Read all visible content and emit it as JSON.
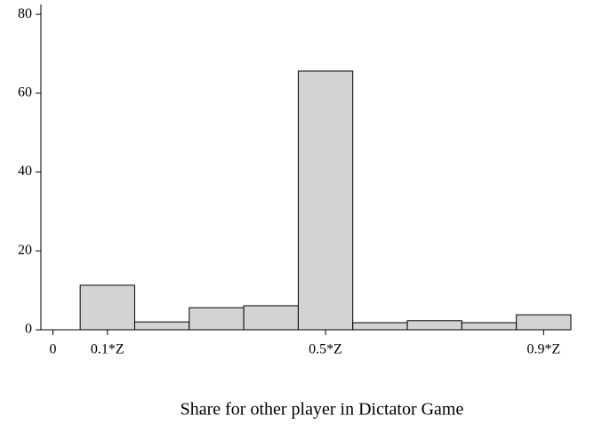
{
  "chart_data": {
    "type": "histogram",
    "xlabel": "Share for other player in Dictator Game",
    "bins": [
      0.05,
      0.15,
      0.25,
      0.35,
      0.45,
      0.55,
      0.65,
      0.75,
      0.85,
      0.95
    ],
    "values": [
      11.3,
      2.0,
      5.6,
      6.1,
      65.6,
      1.8,
      2.3,
      1.8,
      3.8
    ],
    "color": "#d3d3d3",
    "xlim": [
      -0.022,
      0.95
    ],
    "xticks": [
      0,
      {
        "value": 0.1,
        "label": "0.1*Z"
      },
      {
        "value": 0.5,
        "label": "0.5*Z"
      },
      {
        "value": 0.9,
        "label": "0.9*Z"
      }
    ],
    "ylim": [
      0,
      82.5
    ],
    "yticks": [
      0,
      20,
      40,
      60,
      80
    ]
  }
}
